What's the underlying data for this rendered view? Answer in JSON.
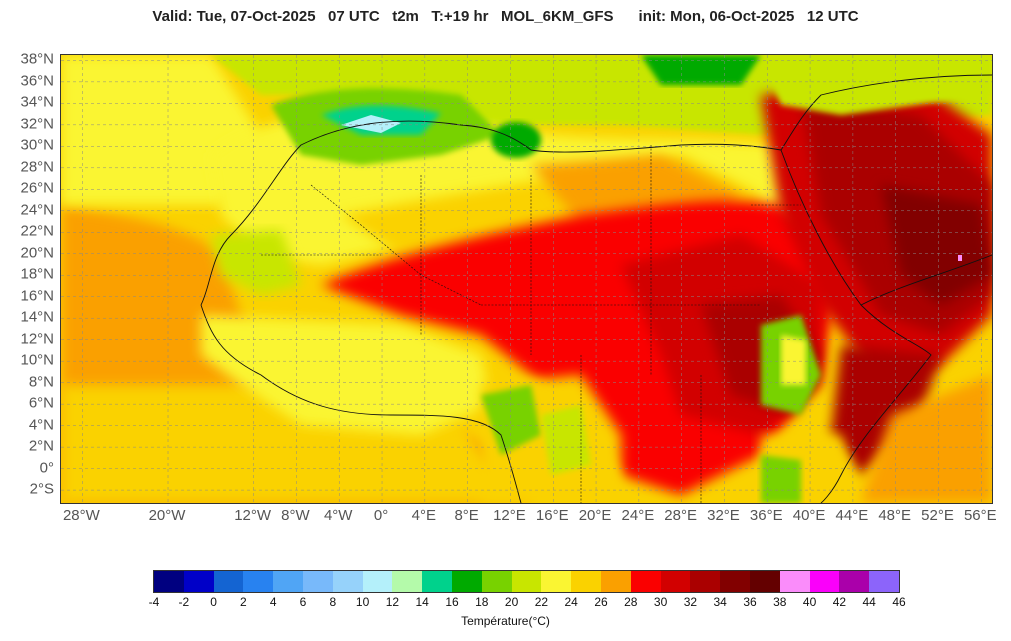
{
  "header": {
    "title": "Valid: Tue, 07-Oct-2025   07 UTC   t2m   T:+19 hr   MOL_6KM_GFS      init: Mon, 06-Oct-2025   12 UTC"
  },
  "map": {
    "extent": {
      "lon_min": -30,
      "lon_max": 57,
      "lat_min": -3.2,
      "lat_max": 38.5
    },
    "lat_ticks": [
      {
        "value": 38,
        "label": "38°N"
      },
      {
        "value": 36,
        "label": "36°N"
      },
      {
        "value": 34,
        "label": "34°N"
      },
      {
        "value": 32,
        "label": "32°N"
      },
      {
        "value": 30,
        "label": "30°N"
      },
      {
        "value": 28,
        "label": "28°N"
      },
      {
        "value": 26,
        "label": "26°N"
      },
      {
        "value": 24,
        "label": "24°N"
      },
      {
        "value": 22,
        "label": "22°N"
      },
      {
        "value": 20,
        "label": "20°N"
      },
      {
        "value": 18,
        "label": "18°N"
      },
      {
        "value": 16,
        "label": "16°N"
      },
      {
        "value": 14,
        "label": "14°N"
      },
      {
        "value": 12,
        "label": "12°N"
      },
      {
        "value": 10,
        "label": "10°N"
      },
      {
        "value": 8,
        "label": "8°N"
      },
      {
        "value": 6,
        "label": "6°N"
      },
      {
        "value": 4,
        "label": "4°N"
      },
      {
        "value": 2,
        "label": "2°N"
      },
      {
        "value": 0,
        "label": "0°"
      },
      {
        "value": -2,
        "label": "2°S"
      }
    ],
    "lon_ticks": [
      {
        "value": -28,
        "label": "28°W"
      },
      {
        "value": -20,
        "label": "20°W"
      },
      {
        "value": -12,
        "label": "12°W"
      },
      {
        "value": -8,
        "label": "8°W"
      },
      {
        "value": -4,
        "label": "4°W"
      },
      {
        "value": 0,
        "label": "0°"
      },
      {
        "value": 4,
        "label": "4°E"
      },
      {
        "value": 8,
        "label": "8°E"
      },
      {
        "value": 12,
        "label": "12°E"
      },
      {
        "value": 16,
        "label": "16°E"
      },
      {
        "value": 20,
        "label": "20°E"
      },
      {
        "value": 24,
        "label": "24°E"
      },
      {
        "value": 28,
        "label": "28°E"
      },
      {
        "value": 32,
        "label": "32°E"
      },
      {
        "value": 36,
        "label": "36°E"
      },
      {
        "value": 40,
        "label": "40°E"
      },
      {
        "value": 44,
        "label": "44°E"
      },
      {
        "value": 48,
        "label": "48°E"
      },
      {
        "value": 52,
        "label": "52°E"
      },
      {
        "value": 56,
        "label": "56°E"
      }
    ],
    "grid": true
  },
  "colorbar": {
    "title": "Température(°C)",
    "ticks": [
      "-4",
      "-2",
      "0",
      "2",
      "4",
      "6",
      "8",
      "10",
      "12",
      "14",
      "16",
      "18",
      "20",
      "22",
      "24",
      "26",
      "28",
      "30",
      "32",
      "34",
      "36",
      "38",
      "40",
      "42",
      "44",
      "46"
    ],
    "colors": [
      "#000080",
      "#0000c8",
      "#1464d2",
      "#2882f0",
      "#50a5f5",
      "#78b9fa",
      "#96d2fa",
      "#b4f0fa",
      "#b4faaa",
      "#00d28c",
      "#00aa00",
      "#78d200",
      "#c8e600",
      "#faf532",
      "#fad200",
      "#faa000",
      "#fa0000",
      "#d20000",
      "#aa0000",
      "#820000",
      "#640000",
      "#fa8cfa",
      "#fa00fa",
      "#aa00aa",
      "#8c64fa"
    ]
  },
  "palette": {
    "ocean_west": "#faa000",
    "ocean_south": "#fad200",
    "med": "#c8e600"
  }
}
